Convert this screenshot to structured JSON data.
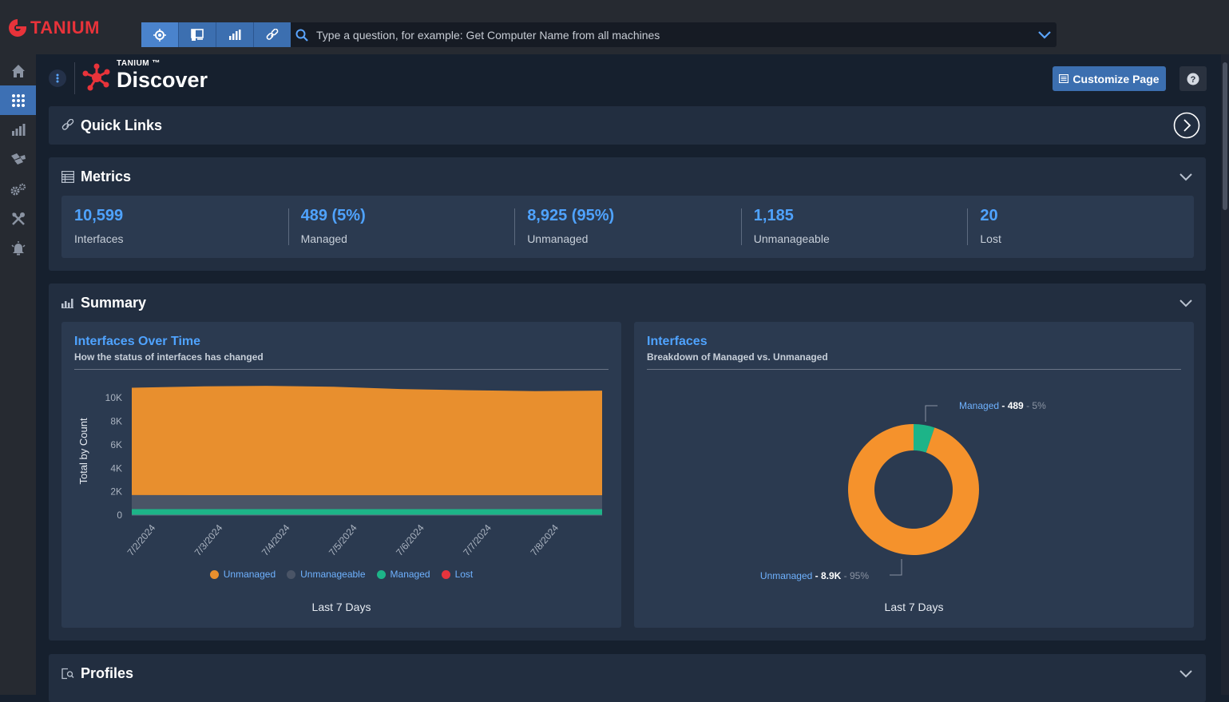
{
  "app": {
    "logo_text": "TANIUM"
  },
  "search": {
    "placeholder": "Type a question, for example: Get Computer Name from all machines"
  },
  "header": {
    "brand_small": "TANIUM ™",
    "title": "Discover",
    "customize_label": "Customize Page"
  },
  "quick_links": {
    "title": "Quick Links"
  },
  "metrics": {
    "title": "Metrics",
    "items": [
      {
        "value": "10,599",
        "label": "Interfaces"
      },
      {
        "value": "489 (5%)",
        "label": "Managed"
      },
      {
        "value": "8,925 (95%)",
        "label": "Unmanaged"
      },
      {
        "value": "1,185",
        "label": "Unmanageable"
      },
      {
        "value": "20",
        "label": "Lost"
      }
    ]
  },
  "summary": {
    "title": "Summary",
    "time_chart": {
      "title": "Interfaces Over Time",
      "subtitle": "How the status of interfaces has changed",
      "footer": "Last 7 Days"
    },
    "donut_chart": {
      "title": "Interfaces",
      "subtitle": "Breakdown of Managed vs. Unmanaged",
      "footer": "Last 7 Days"
    }
  },
  "profiles": {
    "title": "Profiles"
  },
  "colors": {
    "unmanaged": "#e88f2e",
    "unmanageable": "#4a5466",
    "managed": "#1db488",
    "lost": "#e5343d",
    "accent": "#3c6fb0",
    "link": "#4fa3ff"
  },
  "chart_data": [
    {
      "type": "area",
      "title": "Interfaces Over Time",
      "subtitle": "How the status of interfaces has changed",
      "ylabel": "Total by Count",
      "xlabel": "",
      "x": [
        "7/2/2024",
        "7/3/2024",
        "7/4/2024",
        "7/5/2024",
        "7/6/2024",
        "7/7/2024",
        "7/8/2024",
        ""
      ],
      "x_tick_labels": [
        "7/2/2024",
        "7/3/2024",
        "7/4/2024",
        "7/5/2024",
        "7/6/2024",
        "7/7/2024",
        "7/8/2024"
      ],
      "y_tick_labels": [
        "0",
        "2K",
        "4K",
        "6K",
        "8K",
        "10K"
      ],
      "ylim": [
        0,
        10900
      ],
      "stacked": true,
      "legend_position": "bottom",
      "series": [
        {
          "name": "Lost",
          "color": "#e5343d",
          "values": [
            20,
            20,
            20,
            20,
            20,
            20,
            20,
            20
          ]
        },
        {
          "name": "Managed",
          "color": "#1db488",
          "values": [
            490,
            490,
            490,
            490,
            490,
            490,
            490,
            489
          ]
        },
        {
          "name": "Unmanageable",
          "color": "#4a5466",
          "values": [
            1200,
            1190,
            1190,
            1185,
            1185,
            1185,
            1185,
            1185
          ]
        },
        {
          "name": "Unmanaged",
          "color": "#e88f2e",
          "values": [
            9160,
            9280,
            9330,
            9260,
            9060,
            8960,
            8880,
            8925
          ]
        }
      ],
      "footer": "Last 7 Days"
    },
    {
      "type": "pie",
      "title": "Interfaces",
      "subtitle": "Breakdown of Managed vs. Unmanaged",
      "donut": true,
      "slices": [
        {
          "name": "Managed",
          "value": 489,
          "value_label": "489",
          "percent_label": "5%",
          "color": "#1db488"
        },
        {
          "name": "Unmanaged",
          "value": 8925,
          "value_label": "8.9K",
          "percent_label": "95%",
          "color": "#f5922c"
        }
      ],
      "footer": "Last 7 Days"
    }
  ]
}
